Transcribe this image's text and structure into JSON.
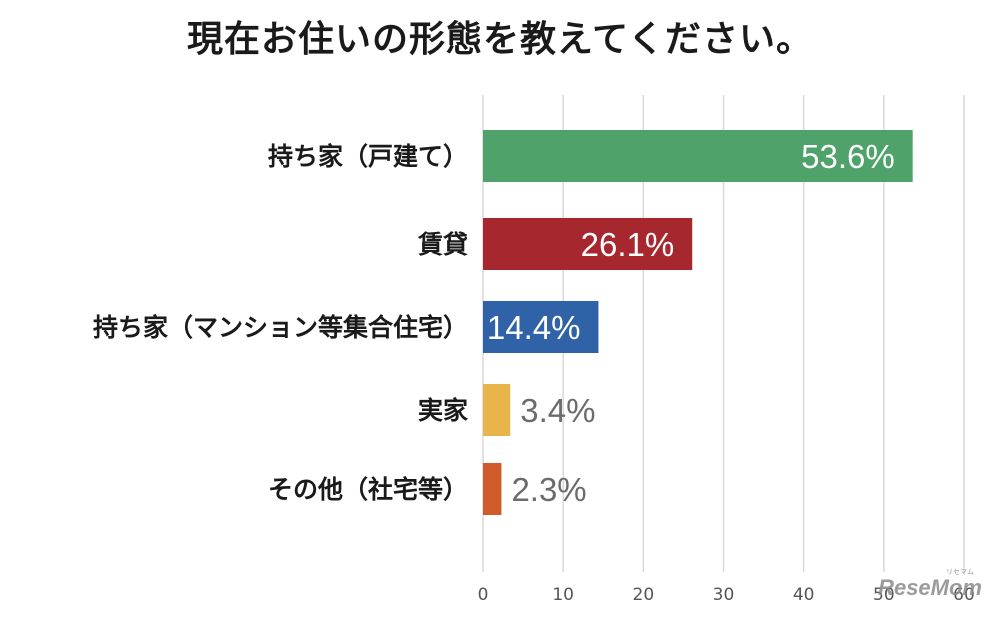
{
  "chart_data": {
    "type": "bar",
    "orientation": "horizontal",
    "title": "現在お住いの形態を教えてください。",
    "categories": [
      "持ち家（戸建て）",
      "賃貸",
      "持ち家（マンション等集合住宅）",
      "実家",
      "その他（社宅等）"
    ],
    "values": [
      53.6,
      26.1,
      14.4,
      3.4,
      2.3
    ],
    "value_labels": [
      "53.6%",
      "26.1%",
      "14.4%",
      "3.4%",
      "2.3%"
    ],
    "colors": [
      "#4fa36a",
      "#a6282e",
      "#2f62a6",
      "#e8b54a",
      "#cf5a2a"
    ],
    "xlim": [
      0,
      60
    ],
    "xticks": [
      "0",
      "10",
      "20",
      "30",
      "40",
      "50",
      "60"
    ],
    "grid": true
  },
  "watermark": {
    "text": "ReseMom",
    "ruby": "リセマム"
  }
}
